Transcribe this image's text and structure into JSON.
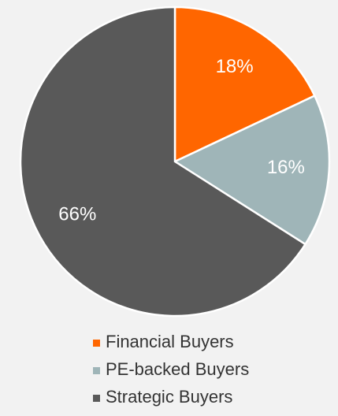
{
  "chart_data": {
    "type": "pie",
    "categories": [
      "Financial Buyers",
      "PE-backed Buyers",
      "Strategic Buyers"
    ],
    "values": [
      18,
      16,
      66
    ],
    "value_labels": [
      "18%",
      "16%",
      "66%"
    ],
    "colors": [
      "#ff6600",
      "#9fb5b8",
      "#595959"
    ],
    "legend": "bottom"
  }
}
